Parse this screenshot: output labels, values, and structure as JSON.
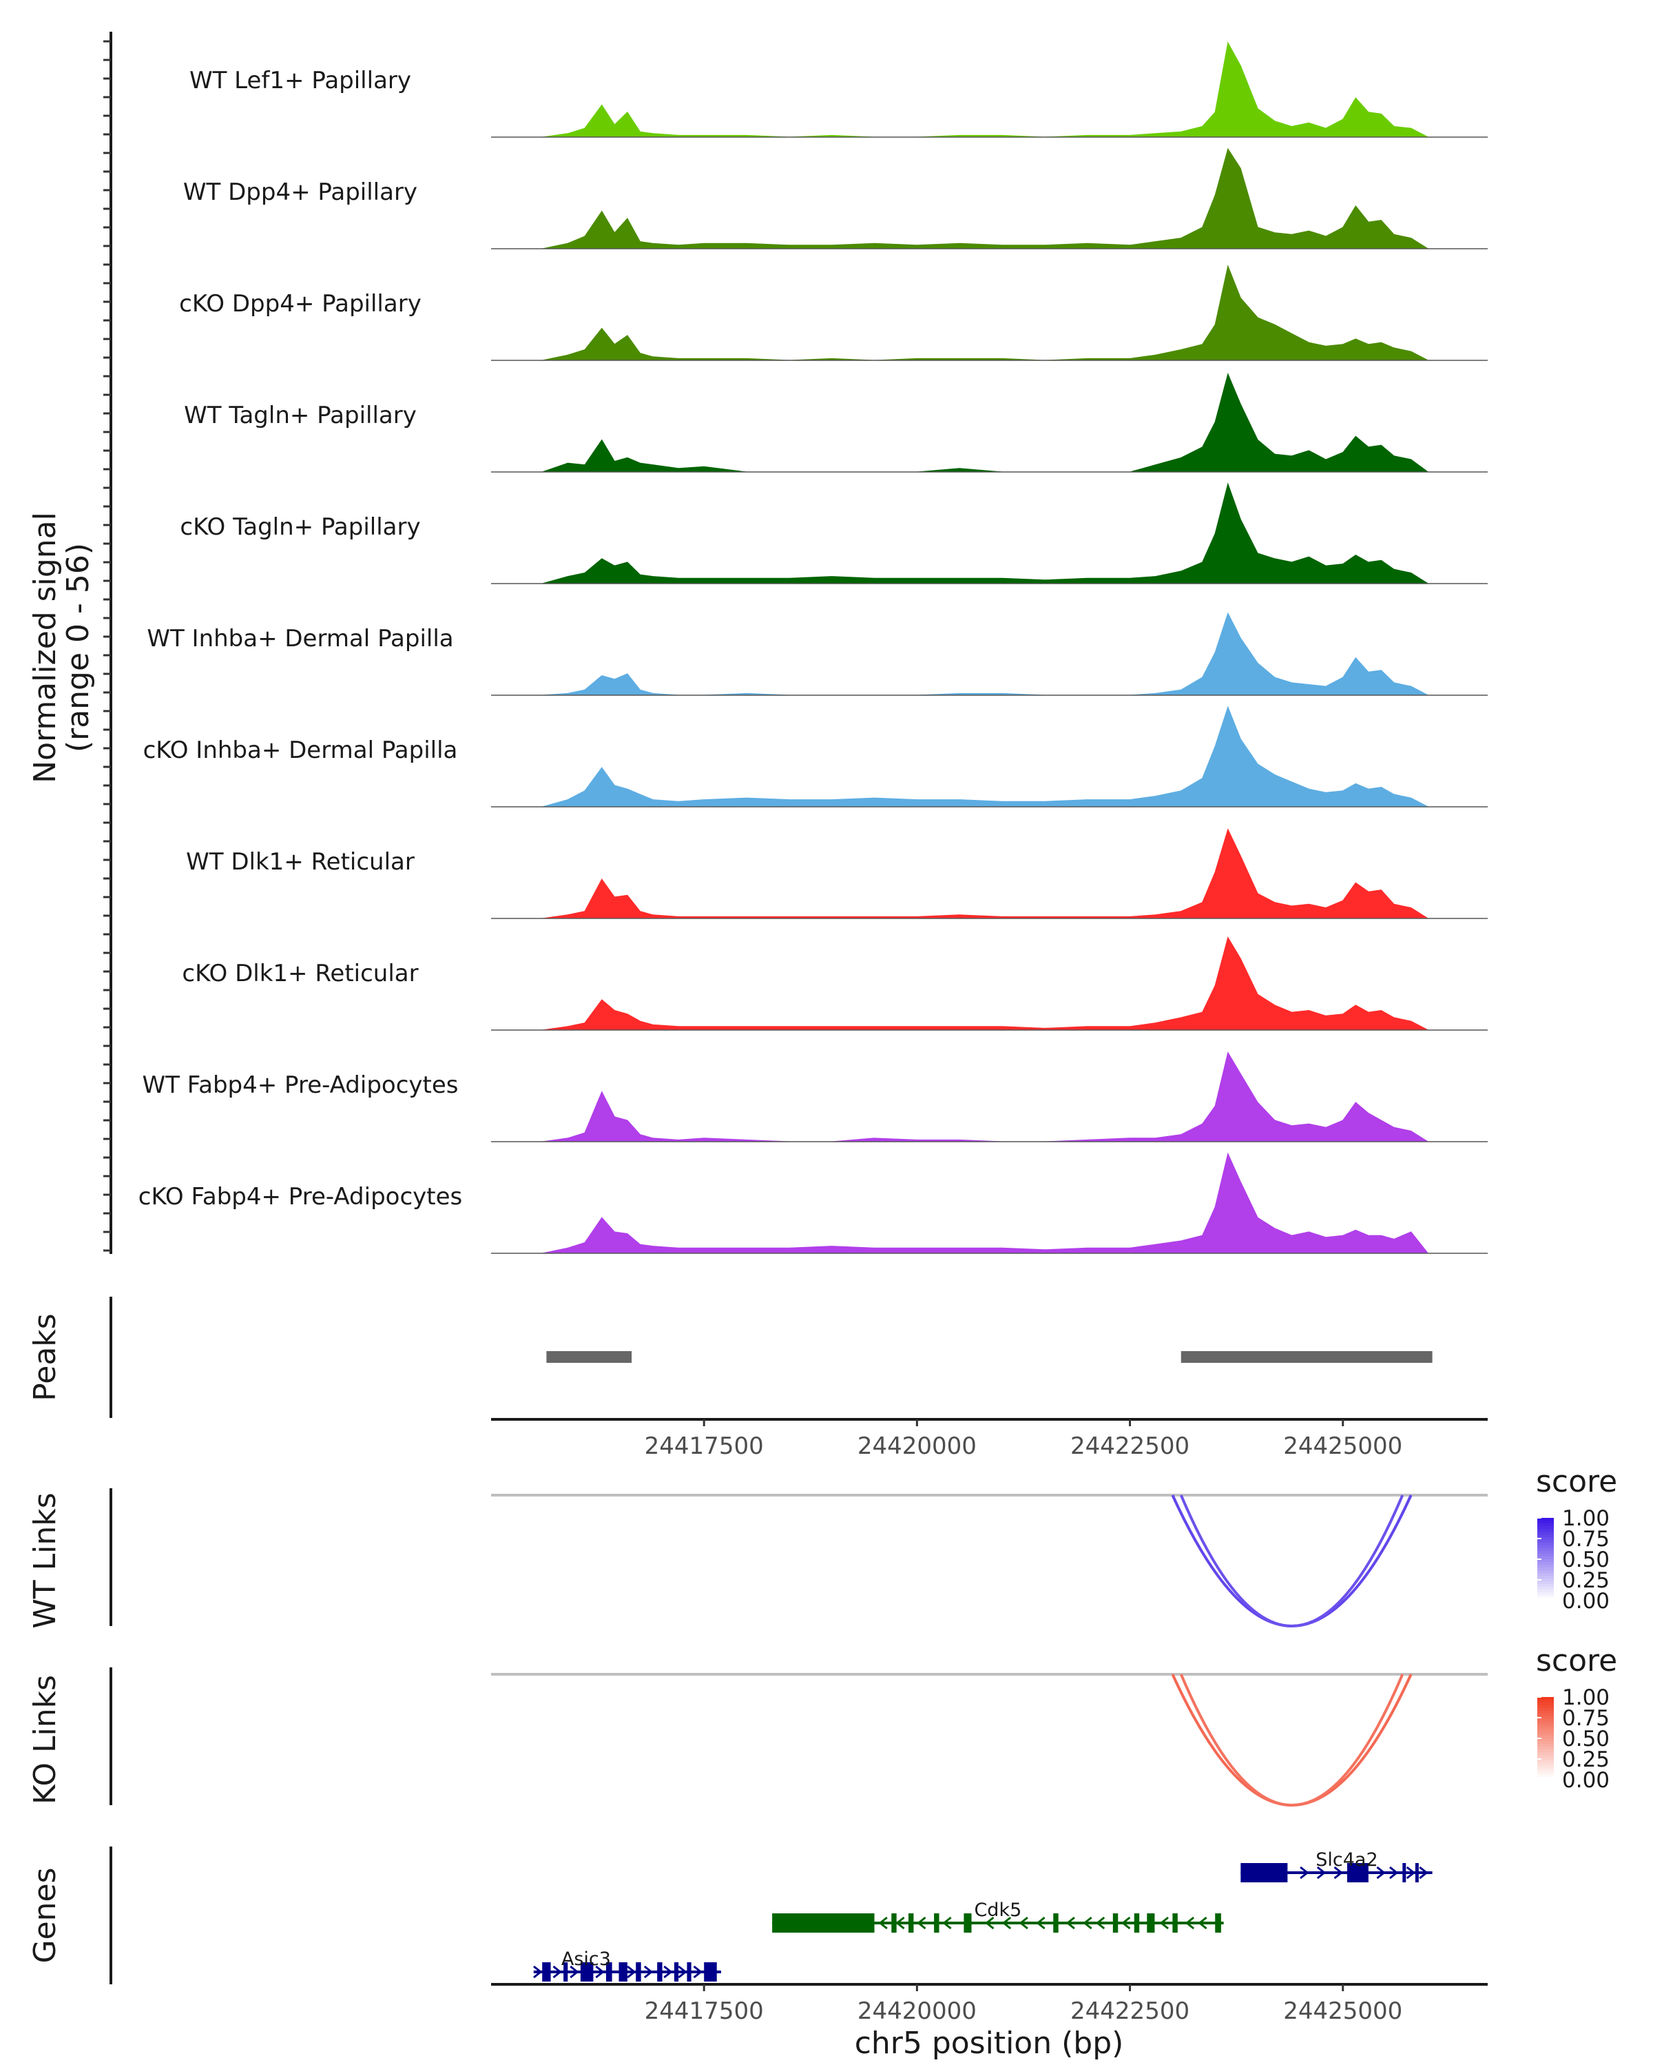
{
  "chart_data": {
    "type": "area",
    "title": "",
    "region": "chr5",
    "xlabel": "chr5 position (bp)",
    "xlim": [
      24415000,
      24426700
    ],
    "x_ticks": [
      24417500,
      24420000,
      24422500,
      24425000
    ],
    "x_tick_labels": [
      "24417500",
      "24420000",
      "24422500",
      "24425000"
    ],
    "coverage_ylabel": [
      "Normalized signal",
      "(range 0 - 56)"
    ],
    "ylim": [
      0,
      56
    ],
    "peaks_label": "Peaks",
    "genes_label": "Genes",
    "coverage_x": [
      24415600,
      24415900,
      24416100,
      24416300,
      24416450,
      24416600,
      24416750,
      24416900,
      24417200,
      24417500,
      24418000,
      24418500,
      24419000,
      24419500,
      24420000,
      24420500,
      24421000,
      24421500,
      24422000,
      24422500,
      24422800,
      24423100,
      24423350,
      24423500,
      24423650,
      24423800,
      24424000,
      24424200,
      24424400,
      24424600,
      24424800,
      24425000,
      24425150,
      24425300,
      24425450,
      24425600,
      24425800,
      24426000
    ],
    "series": [
      {
        "name": "WT Lef1+ Papillary",
        "color": "#6ACC00",
        "values": [
          0,
          2,
          5,
          18,
          7,
          14,
          3,
          2,
          1,
          1,
          1,
          0,
          1,
          0,
          0,
          1,
          1,
          0,
          1,
          1,
          2,
          3,
          6,
          14,
          53,
          40,
          16,
          9,
          6,
          8,
          5,
          10,
          22,
          14,
          13,
          6,
          5,
          0
        ]
      },
      {
        "name": "WT Dpp4+ Papillary",
        "color": "#4B8B00",
        "values": [
          0,
          3,
          7,
          21,
          9,
          17,
          4,
          3,
          2,
          3,
          3,
          2,
          2,
          3,
          2,
          3,
          2,
          2,
          3,
          2,
          4,
          6,
          12,
          30,
          56,
          45,
          12,
          9,
          8,
          10,
          7,
          12,
          24,
          15,
          16,
          8,
          6,
          0
        ]
      },
      {
        "name": "cKO Dpp4+ Papillary",
        "color": "#4B8B00",
        "values": [
          0,
          3,
          6,
          18,
          9,
          14,
          4,
          2,
          1,
          1,
          1,
          0,
          1,
          0,
          1,
          1,
          1,
          0,
          1,
          1,
          3,
          6,
          9,
          20,
          53,
          35,
          24,
          20,
          15,
          10,
          8,
          9,
          12,
          9,
          10,
          7,
          5,
          0
        ]
      },
      {
        "name": "WT Tagln+ Papillary",
        "color": "#006400",
        "values": [
          0,
          5,
          4,
          18,
          6,
          8,
          5,
          4,
          2,
          3,
          0,
          0,
          0,
          0,
          0,
          2,
          0,
          0,
          0,
          0,
          4,
          8,
          14,
          28,
          55,
          38,
          18,
          10,
          9,
          12,
          7,
          11,
          20,
          14,
          15,
          9,
          7,
          0
        ]
      },
      {
        "name": "cKO Tagln+ Papillary",
        "color": "#006400",
        "values": [
          0,
          4,
          6,
          14,
          10,
          12,
          5,
          4,
          3,
          3,
          3,
          3,
          4,
          3,
          3,
          3,
          3,
          2,
          3,
          3,
          4,
          7,
          12,
          28,
          56,
          36,
          17,
          14,
          12,
          15,
          10,
          11,
          16,
          12,
          13,
          8,
          6,
          0
        ]
      },
      {
        "name": "WT Inhba+ Dermal Papilla",
        "color": "#5DADE2",
        "values": [
          0,
          1,
          3,
          11,
          9,
          12,
          3,
          1,
          0,
          0,
          1,
          0,
          0,
          0,
          0,
          1,
          1,
          0,
          0,
          0,
          1,
          3,
          10,
          24,
          46,
          32,
          18,
          10,
          7,
          6,
          5,
          10,
          21,
          13,
          14,
          7,
          5,
          0
        ]
      },
      {
        "name": "cKO Inhba+ Dermal Papilla",
        "color": "#5DADE2",
        "values": [
          0,
          4,
          9,
          22,
          12,
          10,
          7,
          4,
          3,
          4,
          5,
          4,
          4,
          5,
          4,
          4,
          3,
          3,
          4,
          4,
          6,
          9,
          16,
          34,
          56,
          38,
          24,
          18,
          14,
          10,
          8,
          9,
          13,
          10,
          11,
          7,
          5,
          0
        ]
      },
      {
        "name": "WT Dlk1+ Reticular",
        "color": "#FF2A2A",
        "values": [
          0,
          2,
          4,
          22,
          12,
          13,
          4,
          2,
          1,
          1,
          1,
          1,
          1,
          1,
          1,
          2,
          1,
          1,
          1,
          1,
          2,
          4,
          9,
          26,
          50,
          35,
          14,
          9,
          7,
          8,
          6,
          10,
          20,
          15,
          16,
          8,
          6,
          0
        ]
      },
      {
        "name": "cKO Dlk1+ Reticular",
        "color": "#FF2A2A",
        "values": [
          0,
          2,
          4,
          17,
          11,
          9,
          5,
          3,
          2,
          2,
          2,
          2,
          2,
          2,
          2,
          2,
          2,
          1,
          2,
          2,
          4,
          7,
          10,
          25,
          52,
          40,
          20,
          14,
          10,
          11,
          8,
          9,
          14,
          10,
          11,
          7,
          5,
          0
        ]
      },
      {
        "name": "WT Fabp4+ Pre-Adipocytes",
        "color": "#B13FEA",
        "values": [
          0,
          2,
          5,
          28,
          14,
          12,
          4,
          2,
          1,
          2,
          1,
          0,
          0,
          2,
          1,
          1,
          0,
          0,
          1,
          2,
          2,
          4,
          10,
          20,
          50,
          38,
          22,
          12,
          9,
          10,
          8,
          12,
          22,
          16,
          12,
          8,
          6,
          0
        ]
      },
      {
        "name": "cKO Fabp4+ Pre-Adipocytes",
        "color": "#B13FEA",
        "values": [
          0,
          3,
          6,
          20,
          12,
          11,
          5,
          4,
          3,
          3,
          3,
          3,
          4,
          3,
          3,
          3,
          3,
          2,
          3,
          3,
          5,
          7,
          10,
          26,
          56,
          40,
          20,
          14,
          10,
          12,
          9,
          10,
          13,
          10,
          10,
          8,
          12,
          0
        ]
      }
    ],
    "peaks": [
      {
        "start": 24415650,
        "end": 24416650
      },
      {
        "start": 24423100,
        "end": 24426050
      }
    ],
    "link_tracks": [
      {
        "label": "WT Links",
        "legend_title": "score",
        "color_high": "#3A15E6",
        "color_low": "#FFFFFF",
        "legend_ticks": [
          "1.00",
          "0.75",
          "0.50",
          "0.25",
          "0.00"
        ],
        "links": [
          {
            "start": 24423000,
            "end": 24425800,
            "score": 0.72
          },
          {
            "start": 24423100,
            "end": 24425700,
            "score": 0.66
          }
        ]
      },
      {
        "label": "KO Links",
        "legend_title": "score",
        "color_high": "#F03A1E",
        "color_low": "#FFFFFF",
        "legend_ticks": [
          "1.00",
          "0.75",
          "0.50",
          "0.25",
          "0.00"
        ],
        "links": [
          {
            "start": 24423000,
            "end": 24425800,
            "score": 0.68
          },
          {
            "start": 24423100,
            "end": 24425700,
            "score": 0.62
          }
        ]
      }
    ],
    "genes": [
      {
        "name": "Slc4a2",
        "strand": "+",
        "color": "#00008B",
        "start": 24423800,
        "end": 24426050,
        "exons": [
          [
            24423800,
            24424350
          ],
          [
            24425050,
            24425300
          ],
          [
            24425700,
            24425740
          ],
          [
            24425850,
            24425890
          ]
        ],
        "arrows": [
          24424550,
          24424750,
          24424950,
          24425450,
          24425600,
          24425800,
          24425950
        ]
      },
      {
        "name": "Cdk5",
        "strand": "-",
        "color": "#006400",
        "start": 24418300,
        "end": 24423600,
        "exons": [
          [
            24418300,
            24419500
          ],
          [
            24419700,
            24419760
          ],
          [
            24419900,
            24419960
          ],
          [
            24420200,
            24420260
          ],
          [
            24420550,
            24420640
          ],
          [
            24421600,
            24421660
          ],
          [
            24422300,
            24422360
          ],
          [
            24422550,
            24422610
          ],
          [
            24422700,
            24422790
          ],
          [
            24423000,
            24423060
          ],
          [
            24423500,
            24423570
          ]
        ],
        "arrows": [
          24419600,
          24419800,
          24420050,
          24420350,
          24420850,
          24421050,
          24421250,
          24421450,
          24421800,
          24422000,
          24422150,
          24422450,
          24422900,
          24423200,
          24423350
        ]
      },
      {
        "name": "Asic3",
        "strand": "+",
        "color": "#00008B",
        "start": 24415500,
        "end": 24417700,
        "exons": [
          [
            24415600,
            24415700
          ],
          [
            24415850,
            24415900
          ],
          [
            24416050,
            24416200
          ],
          [
            24416350,
            24416420
          ],
          [
            24416500,
            24416600
          ],
          [
            24416700,
            24416760
          ],
          [
            24416950,
            24417010
          ],
          [
            24417150,
            24417200
          ],
          [
            24417300,
            24417350
          ],
          [
            24417500,
            24417650
          ]
        ],
        "arrows": [
          24415550,
          24415780,
          24415980,
          24416280,
          24416650,
          24416850,
          24417080,
          24417250,
          24417430
        ]
      }
    ]
  }
}
